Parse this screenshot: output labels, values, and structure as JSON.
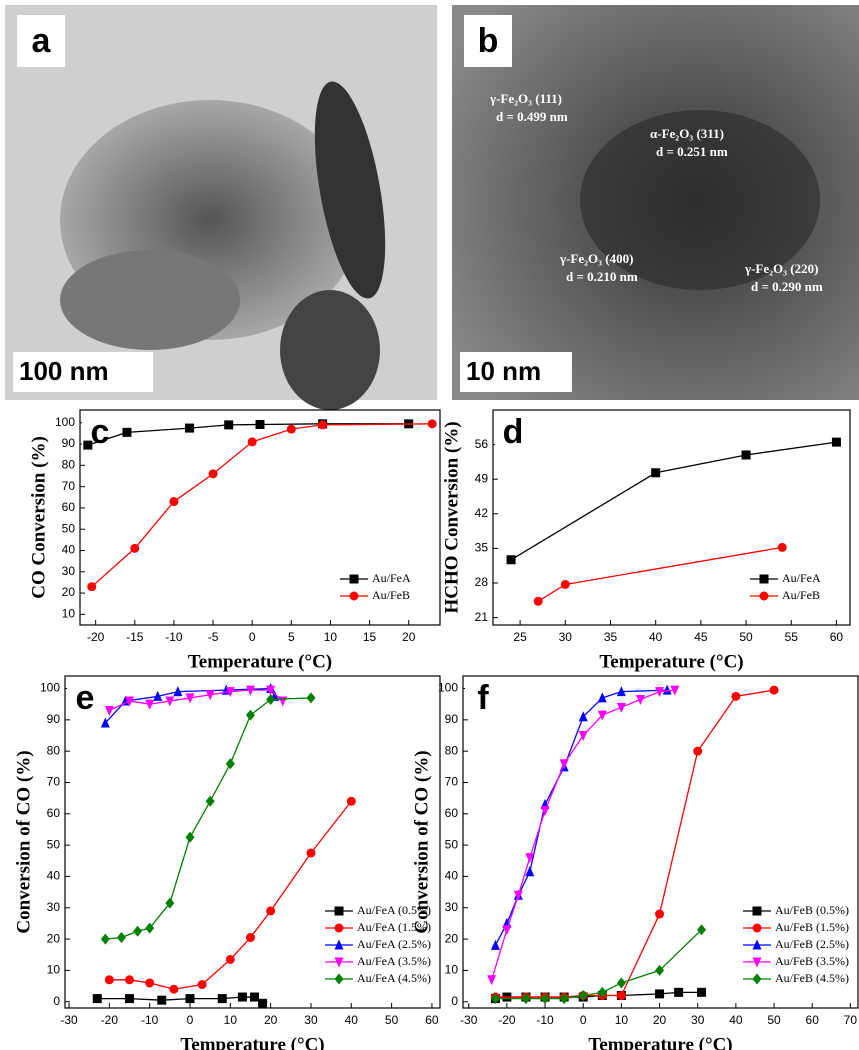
{
  "images": [
    {
      "label": "a",
      "scale": "100 nm"
    },
    {
      "label": "b",
      "scale": "10 nm",
      "annotations": [
        {
          "phase": "γ-Fe₂O₃ (111)",
          "d": "d = 0.499 nm"
        },
        {
          "phase": "α-Fe₂O₃ (311)",
          "d": "d = 0.251 nm"
        },
        {
          "phase": "γ-Fe₂O₃ (400)",
          "d": "d = 0.210 nm"
        },
        {
          "phase": "γ-Fe₂O₃ (220)",
          "d": "d = 0.290 nm"
        }
      ]
    }
  ],
  "chart_data": [
    {
      "type": "line",
      "panel_label": "c",
      "x_label": "Temperature (°C)",
      "y_label": "CO Conversion (%)",
      "xlim": [
        -22,
        24
      ],
      "xticks": [
        -20,
        -15,
        -10,
        -5,
        0,
        5,
        10,
        15,
        20
      ],
      "ylim": [
        5,
        106
      ],
      "yticks": [
        10,
        20,
        30,
        40,
        50,
        60,
        70,
        80,
        90,
        100
      ],
      "legend": "lower right",
      "series": [
        {
          "name": "Au/FeA",
          "color": "#000000",
          "marker": "square",
          "x": [
            -21,
            -16,
            -8,
            -3,
            1,
            9,
            20
          ],
          "values": [
            89.5,
            95.5,
            97.5,
            99,
            99.2,
            99.5,
            99.5
          ]
        },
        {
          "name": "Au/FeB",
          "color": "#ff0000",
          "marker": "circle",
          "x": [
            -20.5,
            -15,
            -10,
            -5,
            0,
            5,
            9,
            23
          ],
          "values": [
            23,
            41,
            63,
            76,
            91,
            97,
            99,
            99.5
          ]
        }
      ]
    },
    {
      "type": "line",
      "panel_label": "d",
      "x_label": "Temperature (°C)",
      "y_label": "HCHO Conversion (%)",
      "xlim": [
        22,
        61.5
      ],
      "xticks": [
        25,
        30,
        35,
        40,
        45,
        50,
        55,
        60
      ],
      "ylim": [
        19.5,
        63
      ],
      "yticks": [
        21,
        28,
        35,
        42,
        49,
        56
      ],
      "legend": "lower right",
      "series": [
        {
          "name": "Au/FeA",
          "color": "#000000",
          "marker": "square",
          "x": [
            24,
            40,
            50,
            60
          ],
          "values": [
            32.7,
            50.3,
            53.9,
            56.5
          ]
        },
        {
          "name": "Au/FeB",
          "color": "#ff0000",
          "marker": "circle",
          "x": [
            27,
            30,
            54
          ],
          "values": [
            24.3,
            27.7,
            35.2
          ]
        }
      ]
    },
    {
      "type": "line",
      "panel_label": "e",
      "x_label": "Temperature (°C)",
      "y_label": "Conversion of CO (%)",
      "xlim": [
        -31,
        62
      ],
      "xticks": [
        -30,
        -20,
        -10,
        0,
        10,
        20,
        30,
        40,
        50,
        60
      ],
      "ylim": [
        -2,
        104
      ],
      "yticks": [
        0,
        10,
        20,
        30,
        40,
        50,
        60,
        70,
        80,
        90,
        100
      ],
      "legend": "right",
      "series": [
        {
          "name": "Au/FeA (0.5%)",
          "color": "#000000",
          "marker": "square",
          "x": [
            -23,
            -15,
            -7,
            0,
            8,
            13,
            16,
            18
          ],
          "values": [
            1,
            1,
            0.5,
            1,
            1,
            1.5,
            1.5,
            -0.5
          ]
        },
        {
          "name": "Au/FeA (1.5%)",
          "color": "#ff0000",
          "marker": "circle",
          "x": [
            -20,
            -15,
            -10,
            -4,
            3,
            10,
            15,
            20,
            30,
            40
          ],
          "values": [
            7,
            7,
            6,
            4,
            5.5,
            13.5,
            20.5,
            29,
            47.5,
            64
          ]
        },
        {
          "name": "Au/FeA (2.5%)",
          "color": "#0000ff",
          "marker": "triangle",
          "x": [
            -21,
            -16,
            -8,
            -3,
            9,
            20,
            21
          ],
          "values": [
            89,
            96,
            97.5,
            99,
            99.5,
            100,
            97.5
          ]
        },
        {
          "name": "Au/FeA (3.5%)",
          "color": "#ff00ff",
          "marker": "triangle-down",
          "x": [
            -20,
            -15,
            -10,
            -5,
            0,
            5,
            10,
            15,
            20,
            23
          ],
          "values": [
            93,
            96,
            95,
            96,
            97,
            98,
            99,
            99.5,
            99.5,
            96
          ]
        },
        {
          "name": "Au/FeA (4.5%)",
          "color": "#008000",
          "marker": "diamond",
          "x": [
            -21,
            -17,
            -13,
            -10,
            -5,
            0,
            5,
            10,
            15,
            20,
            30
          ],
          "values": [
            20,
            20.5,
            22.5,
            23.5,
            31.5,
            52.5,
            64,
            76,
            91.5,
            96.5,
            97
          ]
        }
      ]
    },
    {
      "type": "line",
      "panel_label": "f",
      "x_label": "Temperature (°C)",
      "y_label": "Conversion of CO (%)",
      "xlim": [
        -31.5,
        72
      ],
      "xticks": [
        -30,
        -20,
        -10,
        0,
        10,
        20,
        30,
        40,
        50,
        60,
        70
      ],
      "ylim": [
        -2,
        104
      ],
      "yticks": [
        0,
        10,
        20,
        30,
        40,
        50,
        60,
        70,
        80,
        90,
        100
      ],
      "legend": "right",
      "series": [
        {
          "name": "Au/FeB (0.5%)",
          "color": "#000000",
          "marker": "square",
          "x": [
            -23,
            -20,
            -15,
            -10,
            -5,
            0,
            5,
            10,
            20,
            25,
            31
          ],
          "values": [
            1,
            1.5,
            1.5,
            1.5,
            1.5,
            1.5,
            2,
            2,
            2.5,
            3,
            3
          ]
        },
        {
          "name": "Au/FeB (1.5%)",
          "color": "#ff0000",
          "marker": "circle",
          "x": [
            -23,
            -15,
            -10,
            -5,
            0,
            5,
            10,
            20,
            30,
            40,
            50
          ],
          "values": [
            1.5,
            1.5,
            1.5,
            1.5,
            2,
            2,
            2,
            28,
            80,
            97.5,
            99.5
          ]
        },
        {
          "name": "Au/FeB (2.5%)",
          "color": "#0000ff",
          "marker": "triangle",
          "x": [
            -23,
            -20,
            -17,
            -14,
            -10,
            -5,
            0,
            5,
            10,
            22
          ],
          "values": [
            18,
            25,
            34,
            41.5,
            63,
            75,
            91,
            97,
            99,
            99.5
          ]
        },
        {
          "name": "Au/FeB (3.5%)",
          "color": "#ff00ff",
          "marker": "triangle-down",
          "x": [
            -24,
            -20,
            -17,
            -14,
            -10,
            -5,
            0,
            5,
            10,
            15,
            20,
            24
          ],
          "values": [
            7,
            23,
            34,
            46,
            61,
            76,
            85,
            91.5,
            94,
            96.5,
            99,
            99.5
          ]
        },
        {
          "name": "Au/FeB (4.5%)",
          "color": "#008000",
          "marker": "diamond",
          "x": [
            -23,
            -15,
            -10,
            -5,
            0,
            5,
            10,
            20,
            31
          ],
          "values": [
            1,
            1,
            1,
            1,
            2,
            3,
            6,
            10,
            23
          ]
        }
      ]
    }
  ]
}
